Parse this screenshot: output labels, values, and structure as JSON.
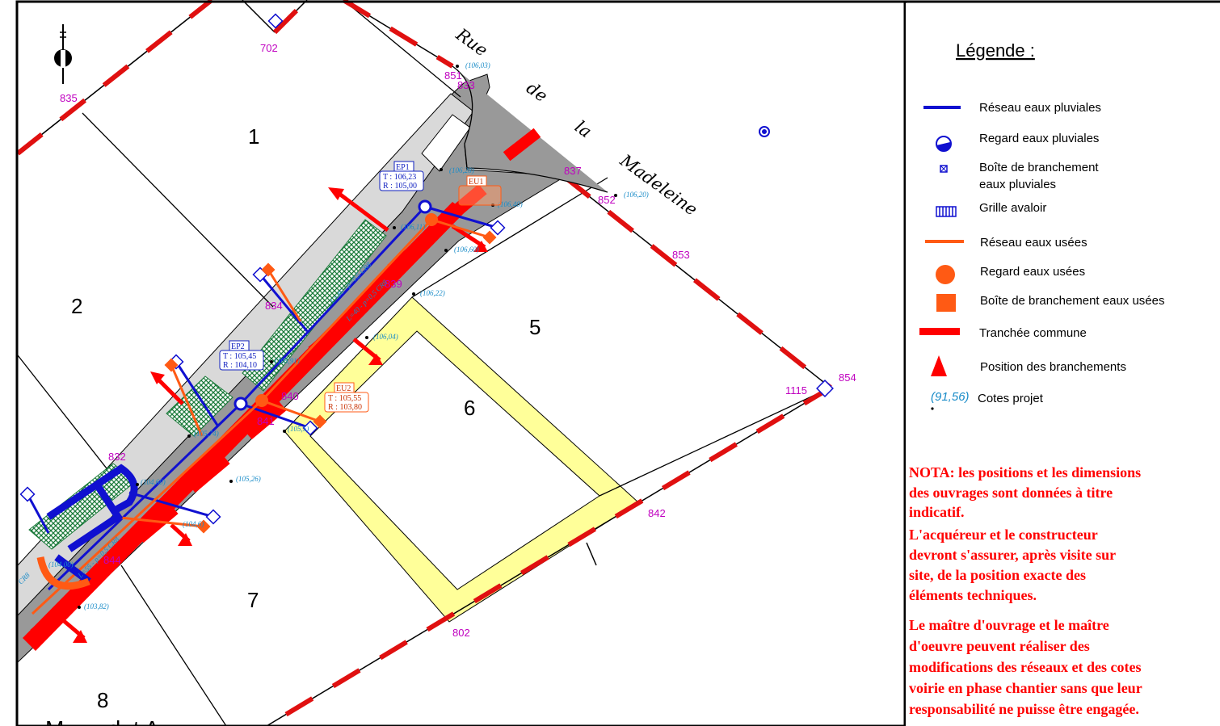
{
  "map": {
    "street_words": [
      "Rue",
      "de",
      "la",
      "Madeleine"
    ],
    "lots": [
      "1",
      "2",
      "5",
      "6",
      "7",
      "8"
    ],
    "bounds": [
      "702",
      "835",
      "851",
      "833",
      "837",
      "852",
      "853",
      "854",
      "1115",
      "842",
      "802",
      "839",
      "834",
      "836",
      "840",
      "841",
      "832",
      "844"
    ],
    "cotes": [
      "(106,03)",
      "(106,28)",
      "(106,20)",
      "(106,40)",
      "(106,11)",
      "(106,60)",
      "(106,22)",
      "(106,04)",
      "(105,91)",
      "(105,74)",
      "(105,26)",
      "(104,60)",
      "(104,6)",
      "(104,00)",
      "(103,82)",
      "(105,5)"
    ],
    "ep1": {
      "name": "EP1",
      "t": "T : 106,23",
      "r": "R : 105,00"
    },
    "ep2": {
      "name": "EP2",
      "t": "T : 105,45",
      "r": "R : 104,10"
    },
    "eu1": {
      "name": "EU1"
    },
    "eu2": {
      "name": "EU2",
      "t": "T : 105,55",
      "r": "R : 103,80"
    },
    "pipe_labels": [
      "L=46 - p=0,5 CR8",
      "L=40 - p=0,5 CR8",
      "L=55 - p=0,5 CR8",
      "CR8"
    ],
    "bottom_partial": "M       d  t A"
  },
  "legend": {
    "title": "Légende :",
    "items": [
      {
        "label": "Réseau eaux pluviales",
        "symbol": "blue-line-icon"
      },
      {
        "label": "Regard eaux pluviales",
        "symbol": "ep-manhole-icon"
      },
      {
        "label": "Boîte de branchement",
        "label2": "eaux pluviales",
        "symbol": "ep-box-icon"
      },
      {
        "label": "Grille avaloir",
        "symbol": "grille-icon"
      },
      {
        "label": "Réseau eaux usées",
        "symbol": "orange-line-icon"
      },
      {
        "label": "Regard eaux usées",
        "symbol": "eu-manhole-icon"
      },
      {
        "label": "Boîte de branchement eaux usées",
        "symbol": "eu-box-icon"
      },
      {
        "label": "Tranchée commune",
        "symbol": "trench-icon"
      },
      {
        "label": "Position des branchements",
        "symbol": "triangle-icon"
      },
      {
        "label": "Cotes projet",
        "sample": "(91,56)",
        "symbol": "cote-icon"
      }
    ]
  },
  "nota": {
    "lines": [
      "NOTA: les positions et les dimensions",
      "des ouvrages sont données à titre",
      "indicatif.",
      "L'acquéreur et le constructeur",
      "devront s'assurer, après visite sur",
      "site, de la position exacte des",
      "éléments techniques.",
      "Le maître d'ouvrage et le maître",
      "d'oeuvre peuvent réaliser des",
      "modifications des réseaux et des cotes",
      "voirie en phase chantier sans que leur",
      "responsabilité ne puisse être engagée."
    ]
  },
  "colors": {
    "ep": "#1010d0",
    "eu": "#ff5a14",
    "trench": "#ff0000",
    "bound": "#c000c0",
    "cote": "#1a8cc8",
    "nota": "#ff0000",
    "lot6": "#ffff99"
  }
}
